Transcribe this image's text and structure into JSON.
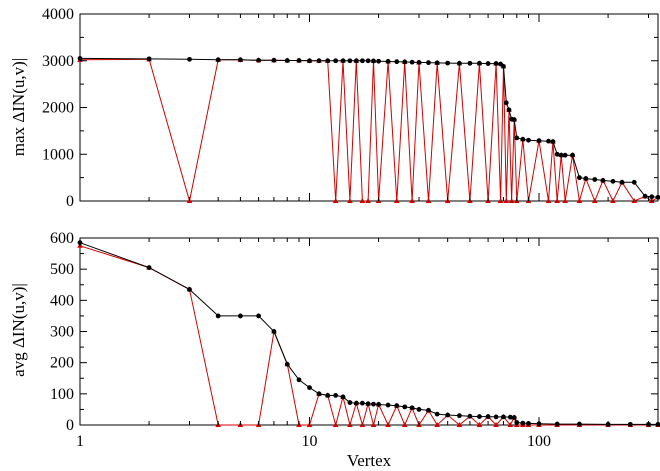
{
  "chart_data": [
    {
      "type": "line",
      "ylabel": "max ΔIN(u,v)|",
      "xscale": "log",
      "xlim": [
        1,
        330
      ],
      "ylim": [
        0,
        4000
      ],
      "yticks": [
        0,
        1000,
        2000,
        3000,
        4000
      ],
      "grid": false,
      "series": [
        {
          "color": "#000000",
          "marker": "circle",
          "x": [
            1,
            2,
            3,
            4,
            5,
            6,
            7,
            8,
            9,
            10,
            11,
            12,
            13,
            14,
            15,
            16,
            17,
            18,
            19,
            20,
            22,
            24,
            26,
            28,
            30,
            33,
            36,
            40,
            45,
            50,
            55,
            60,
            65,
            68,
            70,
            72,
            74,
            76,
            78,
            80,
            85,
            90,
            100,
            110,
            115,
            120,
            125,
            130,
            140,
            150,
            160,
            175,
            190,
            210,
            230,
            260,
            290,
            310,
            330
          ],
          "y": [
            3050,
            3040,
            3030,
            3020,
            3020,
            3010,
            3010,
            3005,
            3005,
            3000,
            3000,
            3000,
            3000,
            3000,
            3000,
            3000,
            3000,
            3000,
            2995,
            2990,
            2985,
            2980,
            2975,
            2970,
            2965,
            2960,
            2955,
            2950,
            2945,
            2945,
            2945,
            2940,
            2940,
            2930,
            2880,
            2100,
            1950,
            1750,
            1740,
            1350,
            1320,
            1300,
            1290,
            1280,
            1270,
            1000,
            980,
            980,
            980,
            500,
            480,
            460,
            440,
            420,
            400,
            400,
            100,
            90,
            80
          ]
        },
        {
          "color": "#d40000",
          "marker": "triangle",
          "x": [
            1,
            2,
            3,
            4,
            5,
            6,
            7,
            8,
            9,
            10,
            11,
            12,
            13,
            14,
            15,
            16,
            17,
            18,
            19,
            20,
            22,
            24,
            26,
            28,
            30,
            33,
            36,
            40,
            45,
            50,
            55,
            60,
            65,
            68,
            70,
            72,
            74,
            76,
            78,
            80,
            85,
            90,
            100,
            110,
            115,
            120,
            125,
            130,
            140,
            150,
            160,
            175,
            190,
            210,
            230,
            260,
            290,
            310,
            330
          ],
          "y": [
            3020,
            3030,
            0,
            3020,
            3020,
            3010,
            3010,
            3005,
            3005,
            3000,
            3000,
            3000,
            0,
            3000,
            0,
            3000,
            0,
            0,
            2995,
            0,
            2985,
            0,
            2975,
            0,
            2965,
            0,
            2955,
            0,
            2945,
            0,
            2945,
            0,
            2940,
            0,
            2880,
            0,
            1950,
            0,
            1740,
            0,
            1320,
            0,
            1290,
            0,
            1270,
            0,
            980,
            0,
            980,
            0,
            480,
            0,
            440,
            0,
            400,
            0,
            100,
            0,
            80
          ]
        }
      ]
    },
    {
      "type": "line",
      "xlabel": "Vertex",
      "ylabel": "avg ΔIN(u,v)|",
      "xscale": "log",
      "xlim": [
        1,
        330
      ],
      "ylim": [
        0,
        600
      ],
      "yticks": [
        0,
        100,
        200,
        300,
        400,
        500,
        600
      ],
      "xticks": [
        1,
        10,
        100
      ],
      "xtick_labels": [
        "1",
        "10",
        "100"
      ],
      "grid": false,
      "series": [
        {
          "color": "#000000",
          "marker": "circle",
          "x": [
            1,
            2,
            3,
            4,
            5,
            6,
            7,
            8,
            9,
            10,
            11,
            12,
            13,
            14,
            15,
            16,
            17,
            18,
            19,
            20,
            22,
            24,
            26,
            28,
            30,
            33,
            36,
            40,
            45,
            50,
            55,
            60,
            65,
            70,
            75,
            78,
            80,
            85,
            90,
            100,
            120,
            150,
            200,
            250,
            300,
            330
          ],
          "y": [
            585,
            505,
            435,
            350,
            350,
            350,
            300,
            195,
            145,
            120,
            100,
            95,
            95,
            90,
            72,
            70,
            70,
            68,
            67,
            66,
            64,
            62,
            58,
            55,
            50,
            47,
            35,
            32,
            30,
            28,
            27,
            27,
            26,
            26,
            25,
            24,
            8,
            6,
            5,
            4,
            3,
            3,
            2,
            2,
            2,
            2
          ]
        },
        {
          "color": "#d40000",
          "marker": "triangle",
          "x": [
            1,
            2,
            3,
            4,
            5,
            6,
            7,
            8,
            9,
            10,
            11,
            12,
            13,
            14,
            15,
            16,
            17,
            18,
            19,
            20,
            22,
            24,
            26,
            28,
            30,
            33,
            36,
            40,
            45,
            50,
            55,
            60,
            65,
            70,
            75,
            78,
            80,
            85,
            90,
            100,
            120,
            150,
            200,
            250,
            300,
            330
          ],
          "y": [
            575,
            505,
            435,
            0,
            0,
            0,
            300,
            195,
            0,
            0,
            100,
            95,
            0,
            90,
            0,
            70,
            0,
            68,
            0,
            66,
            0,
            62,
            0,
            55,
            0,
            47,
            0,
            32,
            0,
            28,
            0,
            27,
            0,
            26,
            0,
            24,
            0,
            0,
            0,
            0,
            0,
            0,
            0,
            0,
            0,
            0
          ]
        }
      ]
    }
  ]
}
